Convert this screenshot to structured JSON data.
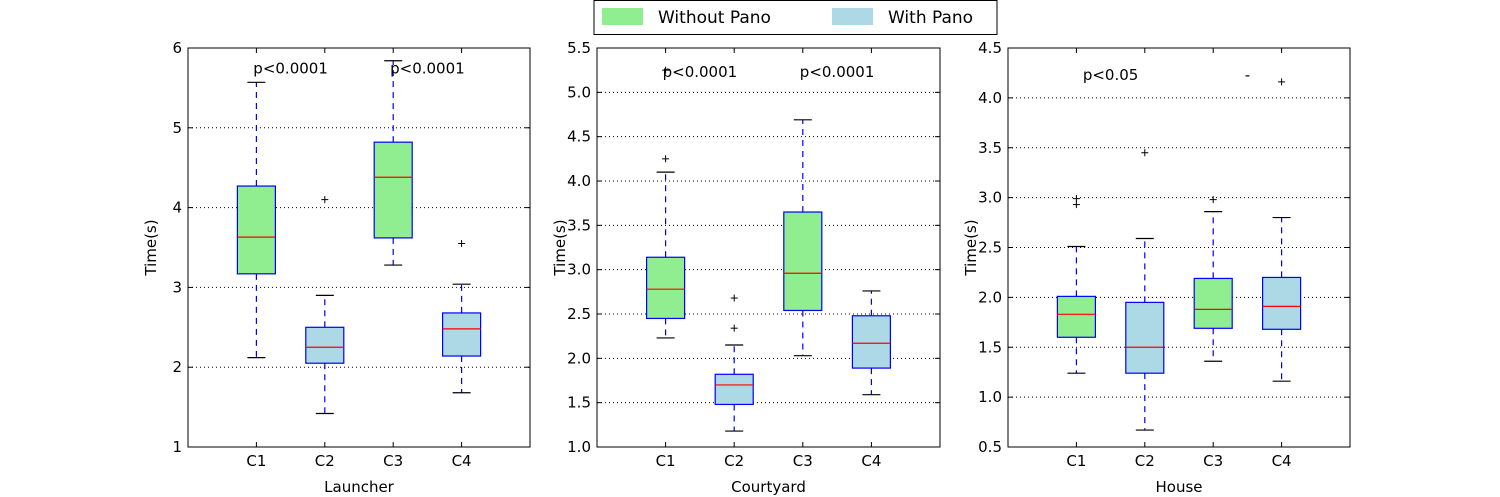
{
  "legend": {
    "entries": [
      {
        "label": "Without Pano",
        "color": "#90EE90"
      },
      {
        "label": "With Pano",
        "color": "#ADD8E6"
      }
    ]
  },
  "colors": {
    "box_edge": "#0000ff",
    "median": "#ff0000",
    "whisker": "#0000ff",
    "cap": "#000000",
    "grid": "#000000"
  },
  "chart_data": [
    {
      "type": "box",
      "xlabel": "Launcher",
      "ylabel": "Time(s)",
      "ylim": [
        1,
        6
      ],
      "yticks": [
        1,
        2,
        3,
        4,
        5,
        6
      ],
      "ytick_labels": [
        "1",
        "2",
        "3",
        "4",
        "5",
        "6"
      ],
      "grid": "y dotted",
      "categories": [
        "C1",
        "C2",
        "C3",
        "C4"
      ],
      "boxes": [
        {
          "category": "C1",
          "group": "Without Pano",
          "whisker_low": 2.12,
          "q1": 3.17,
          "median": 3.63,
          "q3": 4.27,
          "whisker_high": 5.57,
          "outliers": []
        },
        {
          "category": "C2",
          "group": "With Pano",
          "whisker_low": 1.42,
          "q1": 2.05,
          "median": 2.25,
          "q3": 2.5,
          "whisker_high": 2.9,
          "outliers": [
            4.1
          ]
        },
        {
          "category": "C3",
          "group": "Without Pano",
          "whisker_low": 3.28,
          "q1": 3.62,
          "median": 4.38,
          "q3": 4.82,
          "whisker_high": 5.84,
          "outliers": []
        },
        {
          "category": "C4",
          "group": "With Pano",
          "whisker_low": 1.68,
          "q1": 2.14,
          "median": 2.48,
          "q3": 2.68,
          "whisker_high": 3.04,
          "outliers": [
            3.55
          ]
        }
      ],
      "annotations": [
        {
          "text": "p<0.0001",
          "x": 1.5,
          "y": 5.74
        },
        {
          "text": "p<0.0001",
          "x": 3.5,
          "y": 5.74
        }
      ]
    },
    {
      "type": "box",
      "xlabel": "Courtyard",
      "ylabel": "Time(s)",
      "ylim": [
        1.0,
        5.5
      ],
      "yticks": [
        1.0,
        1.5,
        2.0,
        2.5,
        3.0,
        3.5,
        4.0,
        4.5,
        5.0,
        5.5
      ],
      "ytick_labels": [
        "1.0",
        "1.5",
        "2.0",
        "2.5",
        "3.0",
        "3.5",
        "4.0",
        "4.5",
        "5.0",
        "5.5"
      ],
      "grid": "y dotted",
      "categories": [
        "C1",
        "C2",
        "C3",
        "C4"
      ],
      "boxes": [
        {
          "category": "C1",
          "group": "Without Pano",
          "whisker_low": 2.23,
          "q1": 2.45,
          "median": 2.78,
          "q3": 3.14,
          "whisker_high": 4.1,
          "outliers": [
            4.25,
            5.25
          ]
        },
        {
          "category": "C2",
          "group": "With Pano",
          "whisker_low": 1.18,
          "q1": 1.48,
          "median": 1.7,
          "q3": 1.82,
          "whisker_high": 2.15,
          "outliers": [
            2.34,
            2.68
          ]
        },
        {
          "category": "C3",
          "group": "Without Pano",
          "whisker_low": 2.03,
          "q1": 2.54,
          "median": 2.96,
          "q3": 3.65,
          "whisker_high": 4.69,
          "outliers": []
        },
        {
          "category": "C4",
          "group": "With Pano",
          "whisker_low": 1.59,
          "q1": 1.89,
          "median": 2.17,
          "q3": 2.48,
          "whisker_high": 2.76,
          "outliers": []
        }
      ],
      "annotations": [
        {
          "text": "p<0.0001",
          "x": 1.5,
          "y": 5.23
        },
        {
          "text": "p<0.0001",
          "x": 3.5,
          "y": 5.23
        }
      ]
    },
    {
      "type": "box",
      "xlabel": "House",
      "ylabel": "Time(s)",
      "ylim": [
        0.5,
        4.5
      ],
      "yticks": [
        0.5,
        1.0,
        1.5,
        2.0,
        2.5,
        3.0,
        3.5,
        4.0,
        4.5
      ],
      "ytick_labels": [
        "0.5",
        "1.0",
        "1.5",
        "2.0",
        "2.5",
        "3.0",
        "3.5",
        "4.0",
        "4.5"
      ],
      "grid": "y dotted",
      "categories": [
        "C1",
        "C2",
        "C3",
        "C4"
      ],
      "boxes": [
        {
          "category": "C1",
          "group": "Without Pano",
          "whisker_low": 1.24,
          "q1": 1.6,
          "median": 1.83,
          "q3": 2.01,
          "whisker_high": 2.51,
          "outliers": [
            2.93,
            2.99
          ]
        },
        {
          "category": "C2",
          "group": "With Pano",
          "whisker_low": 0.67,
          "q1": 1.24,
          "median": 1.5,
          "q3": 1.95,
          "whisker_high": 2.59,
          "outliers": [
            3.45
          ]
        },
        {
          "category": "C3",
          "group": "Without Pano",
          "whisker_low": 1.36,
          "q1": 1.69,
          "median": 1.88,
          "q3": 2.19,
          "whisker_high": 2.86,
          "outliers": [
            2.98
          ]
        },
        {
          "category": "C4",
          "group": "With Pano",
          "whisker_low": 1.16,
          "q1": 1.68,
          "median": 1.91,
          "q3": 2.2,
          "whisker_high": 2.8,
          "outliers": [
            4.16
          ]
        }
      ],
      "annotations": [
        {
          "text": "p<0.05",
          "x": 1.5,
          "y": 4.23
        },
        {
          "text": "-",
          "x": 3.5,
          "y": 4.23
        }
      ]
    }
  ]
}
